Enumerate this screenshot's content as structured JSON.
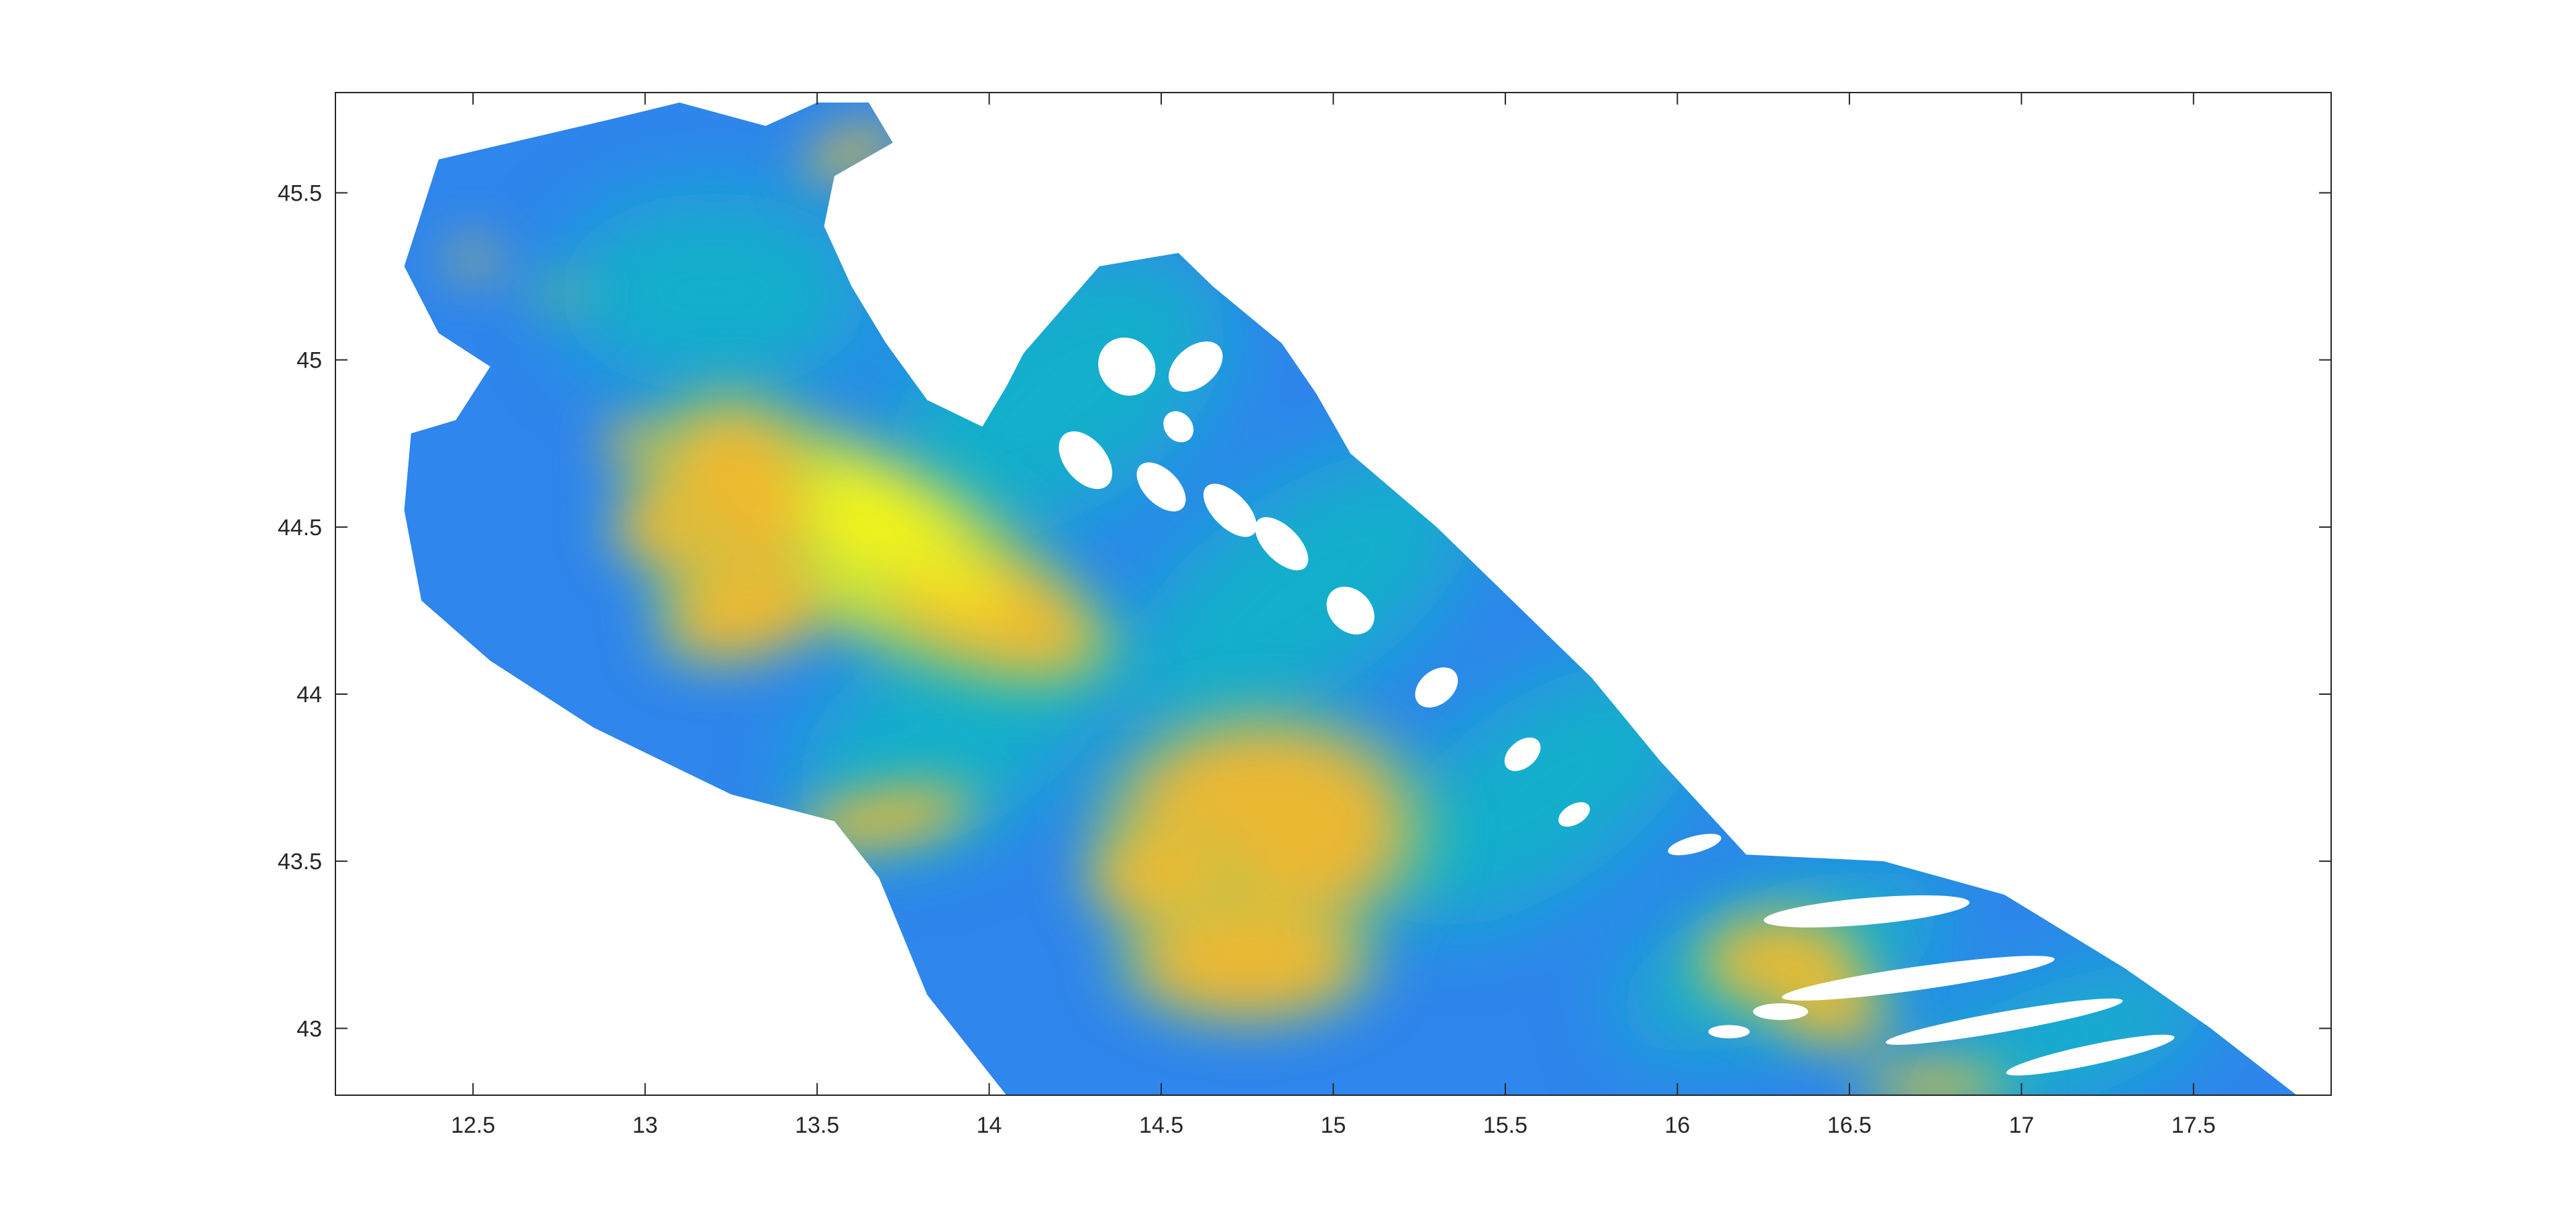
{
  "chart_data": {
    "type": "heatmap",
    "title": "",
    "xlabel": "",
    "ylabel": "",
    "xlim": [
      12.1,
      17.9
    ],
    "ylim": [
      42.8,
      45.8
    ],
    "xticks": [
      12.5,
      13,
      13.5,
      14,
      14.5,
      15,
      15.5,
      16,
      16.5,
      17,
      17.5
    ],
    "xtick_labels": [
      "12.5",
      "13",
      "13.5",
      "14",
      "14.5",
      "15",
      "15.5",
      "16",
      "16.5",
      "17",
      "17.5"
    ],
    "yticks": [
      43,
      43.5,
      44,
      44.5,
      45,
      45.5
    ],
    "ytick_labels": [
      "43",
      "43.5",
      "44",
      "44.5",
      "45",
      "45.5"
    ],
    "grid": false,
    "colormap": "parula",
    "colors": {
      "low": "#2f86ec",
      "mid": "#13b6c6",
      "upper": "#8ccb5a",
      "high": "#f2b82e",
      "peak": "#f5f516"
    },
    "hotspots": [
      {
        "lon": 13.65,
        "lat": 44.45,
        "level": 0.98,
        "rx": 0.55,
        "ry": 0.22,
        "rot": 28
      },
      {
        "lon": 13.25,
        "lat": 44.55,
        "level": 0.86,
        "rx": 0.22,
        "ry": 0.28,
        "rot": 0
      },
      {
        "lon": 13.05,
        "lat": 44.5,
        "level": 0.85,
        "rx": 0.12,
        "ry": 0.09,
        "rot": 0
      },
      {
        "lon": 13.3,
        "lat": 44.25,
        "level": 0.82,
        "rx": 0.22,
        "ry": 0.12,
        "rot": -15
      },
      {
        "lon": 14.0,
        "lat": 44.25,
        "level": 0.9,
        "rx": 0.3,
        "ry": 0.14,
        "rot": 20
      },
      {
        "lon": 14.8,
        "lat": 43.6,
        "level": 0.9,
        "rx": 0.38,
        "ry": 0.28,
        "rot": 0
      },
      {
        "lon": 14.5,
        "lat": 43.45,
        "level": 0.82,
        "rx": 0.18,
        "ry": 0.12,
        "rot": 0
      },
      {
        "lon": 14.75,
        "lat": 43.2,
        "level": 0.8,
        "rx": 0.3,
        "ry": 0.15,
        "rot": 0
      },
      {
        "lon": 13.7,
        "lat": 43.63,
        "level": 0.83,
        "rx": 0.22,
        "ry": 0.07,
        "rot": -10
      },
      {
        "lon": 13.6,
        "lat": 45.62,
        "level": 0.88,
        "rx": 0.12,
        "ry": 0.05,
        "rot": -20
      },
      {
        "lon": 16.3,
        "lat": 43.2,
        "level": 0.85,
        "rx": 0.2,
        "ry": 0.12,
        "rot": 0
      },
      {
        "lon": 16.45,
        "lat": 43.05,
        "level": 0.86,
        "rx": 0.14,
        "ry": 0.08,
        "rot": 0
      },
      {
        "lon": 16.75,
        "lat": 42.83,
        "level": 0.9,
        "rx": 0.18,
        "ry": 0.05,
        "rot": 0
      },
      {
        "lon": 12.5,
        "lat": 45.3,
        "level": 0.8,
        "rx": 0.05,
        "ry": 0.04,
        "rot": 0
      },
      {
        "lon": 12.75,
        "lat": 45.2,
        "level": 0.72,
        "rx": 0.07,
        "ry": 0.025,
        "rot": 0
      },
      {
        "lon": 12.95,
        "lat": 44.75,
        "level": 0.82,
        "rx": 0.05,
        "ry": 0.06,
        "rot": 0
      }
    ]
  }
}
